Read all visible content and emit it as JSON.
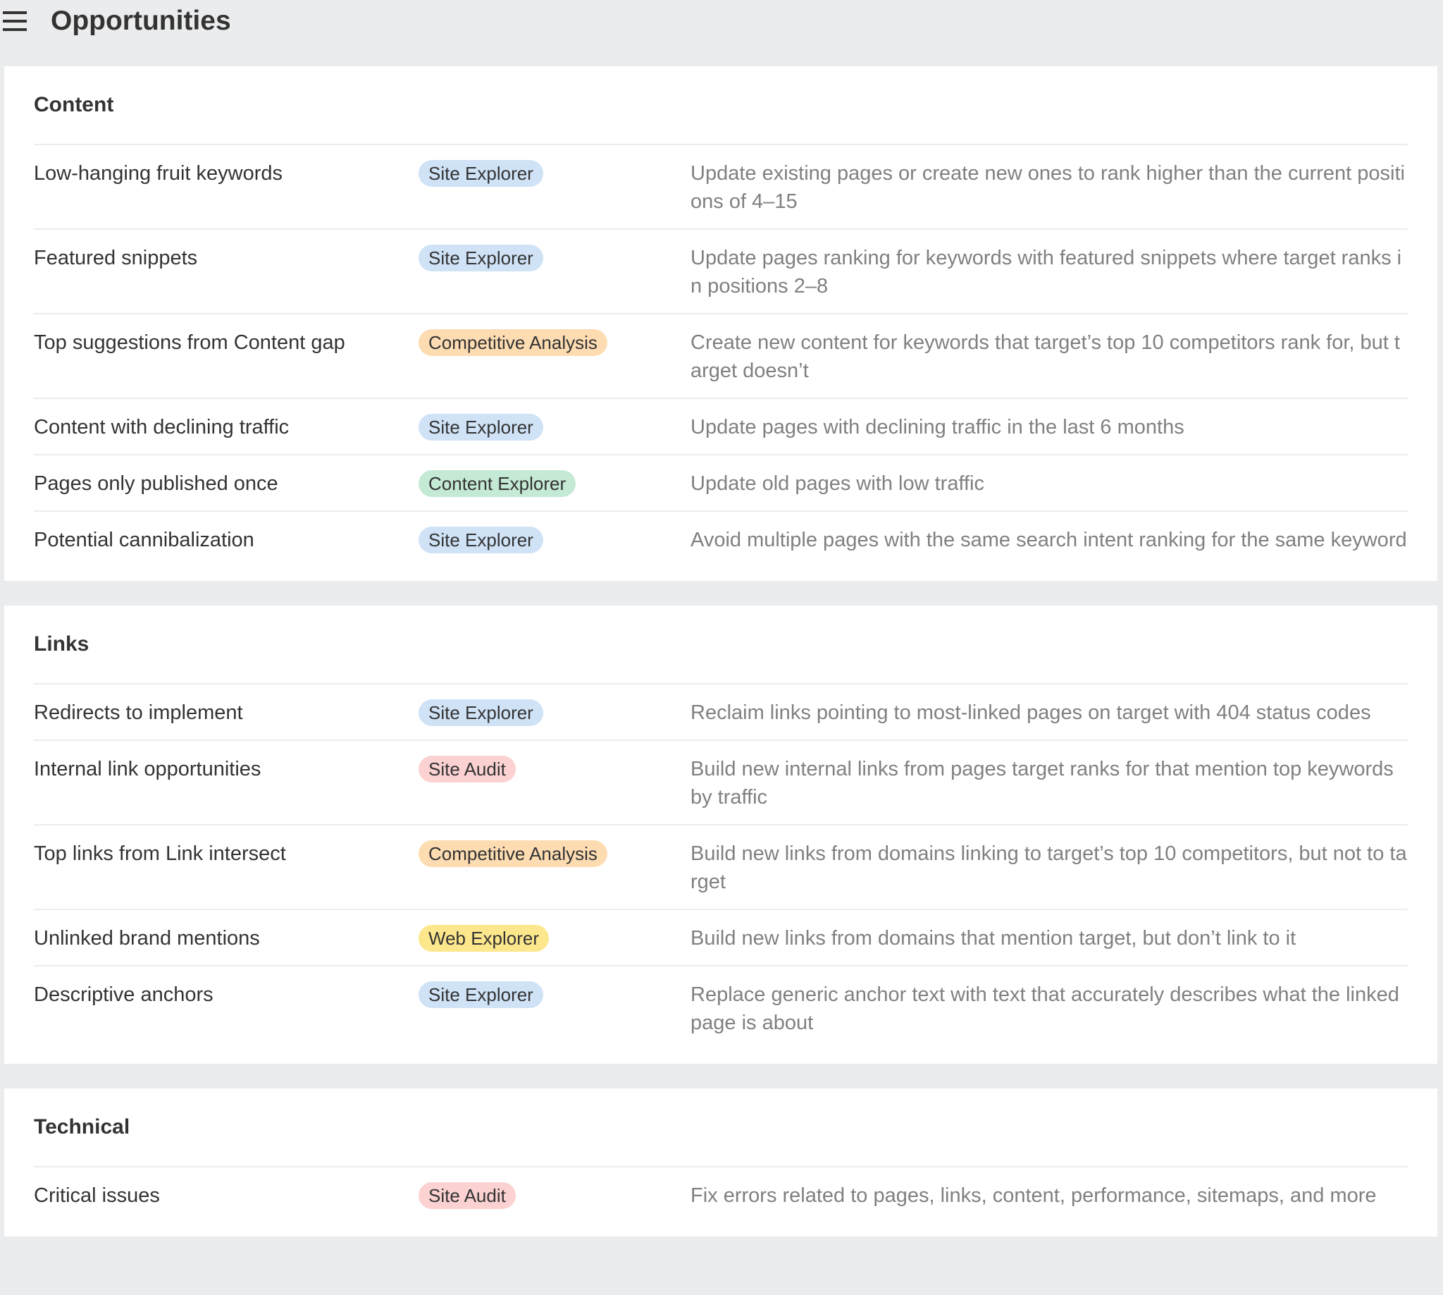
{
  "header": {
    "title": "Opportunities",
    "menu_icon": "hamburger-menu-icon"
  },
  "badge_colors": {
    "Site Explorer": "#cfe2f6",
    "Competitive Analysis": "#fddcb2",
    "Content Explorer": "#c4e9d5",
    "Site Audit": "#fbd1d1",
    "Web Explorer": "#fde78c"
  },
  "sections": [
    {
      "title": "Content",
      "rows": [
        {
          "name": "Low-hanging fruit keywords",
          "tool": "Site Explorer",
          "desc": "Update existing pages or create new ones to rank higher than the current positions of 4–15"
        },
        {
          "name": "Featured snippets",
          "tool": "Site Explorer",
          "desc": "Update pages ranking for keywords with featured snippets where target ranks in positions 2–8"
        },
        {
          "name": "Top suggestions from Content gap",
          "tool": "Competitive Analysis",
          "desc": "Create new content for keywords that target’s top 10 competitors rank for, but target doesn’t"
        },
        {
          "name": "Content with declining traffic",
          "tool": "Site Explorer",
          "desc": "Update pages with declining traffic in the last 6 months"
        },
        {
          "name": "Pages only published once",
          "tool": "Content Explorer",
          "desc": "Update old pages with low traffic"
        },
        {
          "name": "Potential cannibalization",
          "tool": "Site Explorer",
          "desc": "Avoid multiple pages with the same search intent ranking for the same keyword"
        }
      ]
    },
    {
      "title": "Links",
      "rows": [
        {
          "name": "Redirects to implement",
          "tool": "Site Explorer",
          "desc": "Reclaim links pointing to most-linked pages on target with 404 status codes"
        },
        {
          "name": "Internal link opportunities",
          "tool": "Site Audit",
          "desc": "Build new internal links from pages target ranks for that mention top keywords by traffic"
        },
        {
          "name": "Top links from Link intersect",
          "tool": "Competitive Analysis",
          "desc": "Build new links from domains linking to target’s top 10 competitors, but not to target"
        },
        {
          "name": "Unlinked brand mentions",
          "tool": "Web Explorer",
          "desc": "Build new links from domains that mention target, but don’t link to it"
        },
        {
          "name": "Descriptive anchors",
          "tool": "Site Explorer",
          "desc": "Replace generic anchor text with text that accurately describes what the linked page is about"
        }
      ]
    },
    {
      "title": "Technical",
      "rows": [
        {
          "name": "Critical issues",
          "tool": "Site Audit",
          "desc": "Fix errors related to pages, links, content, performance, sitemaps, and more"
        }
      ]
    }
  ]
}
